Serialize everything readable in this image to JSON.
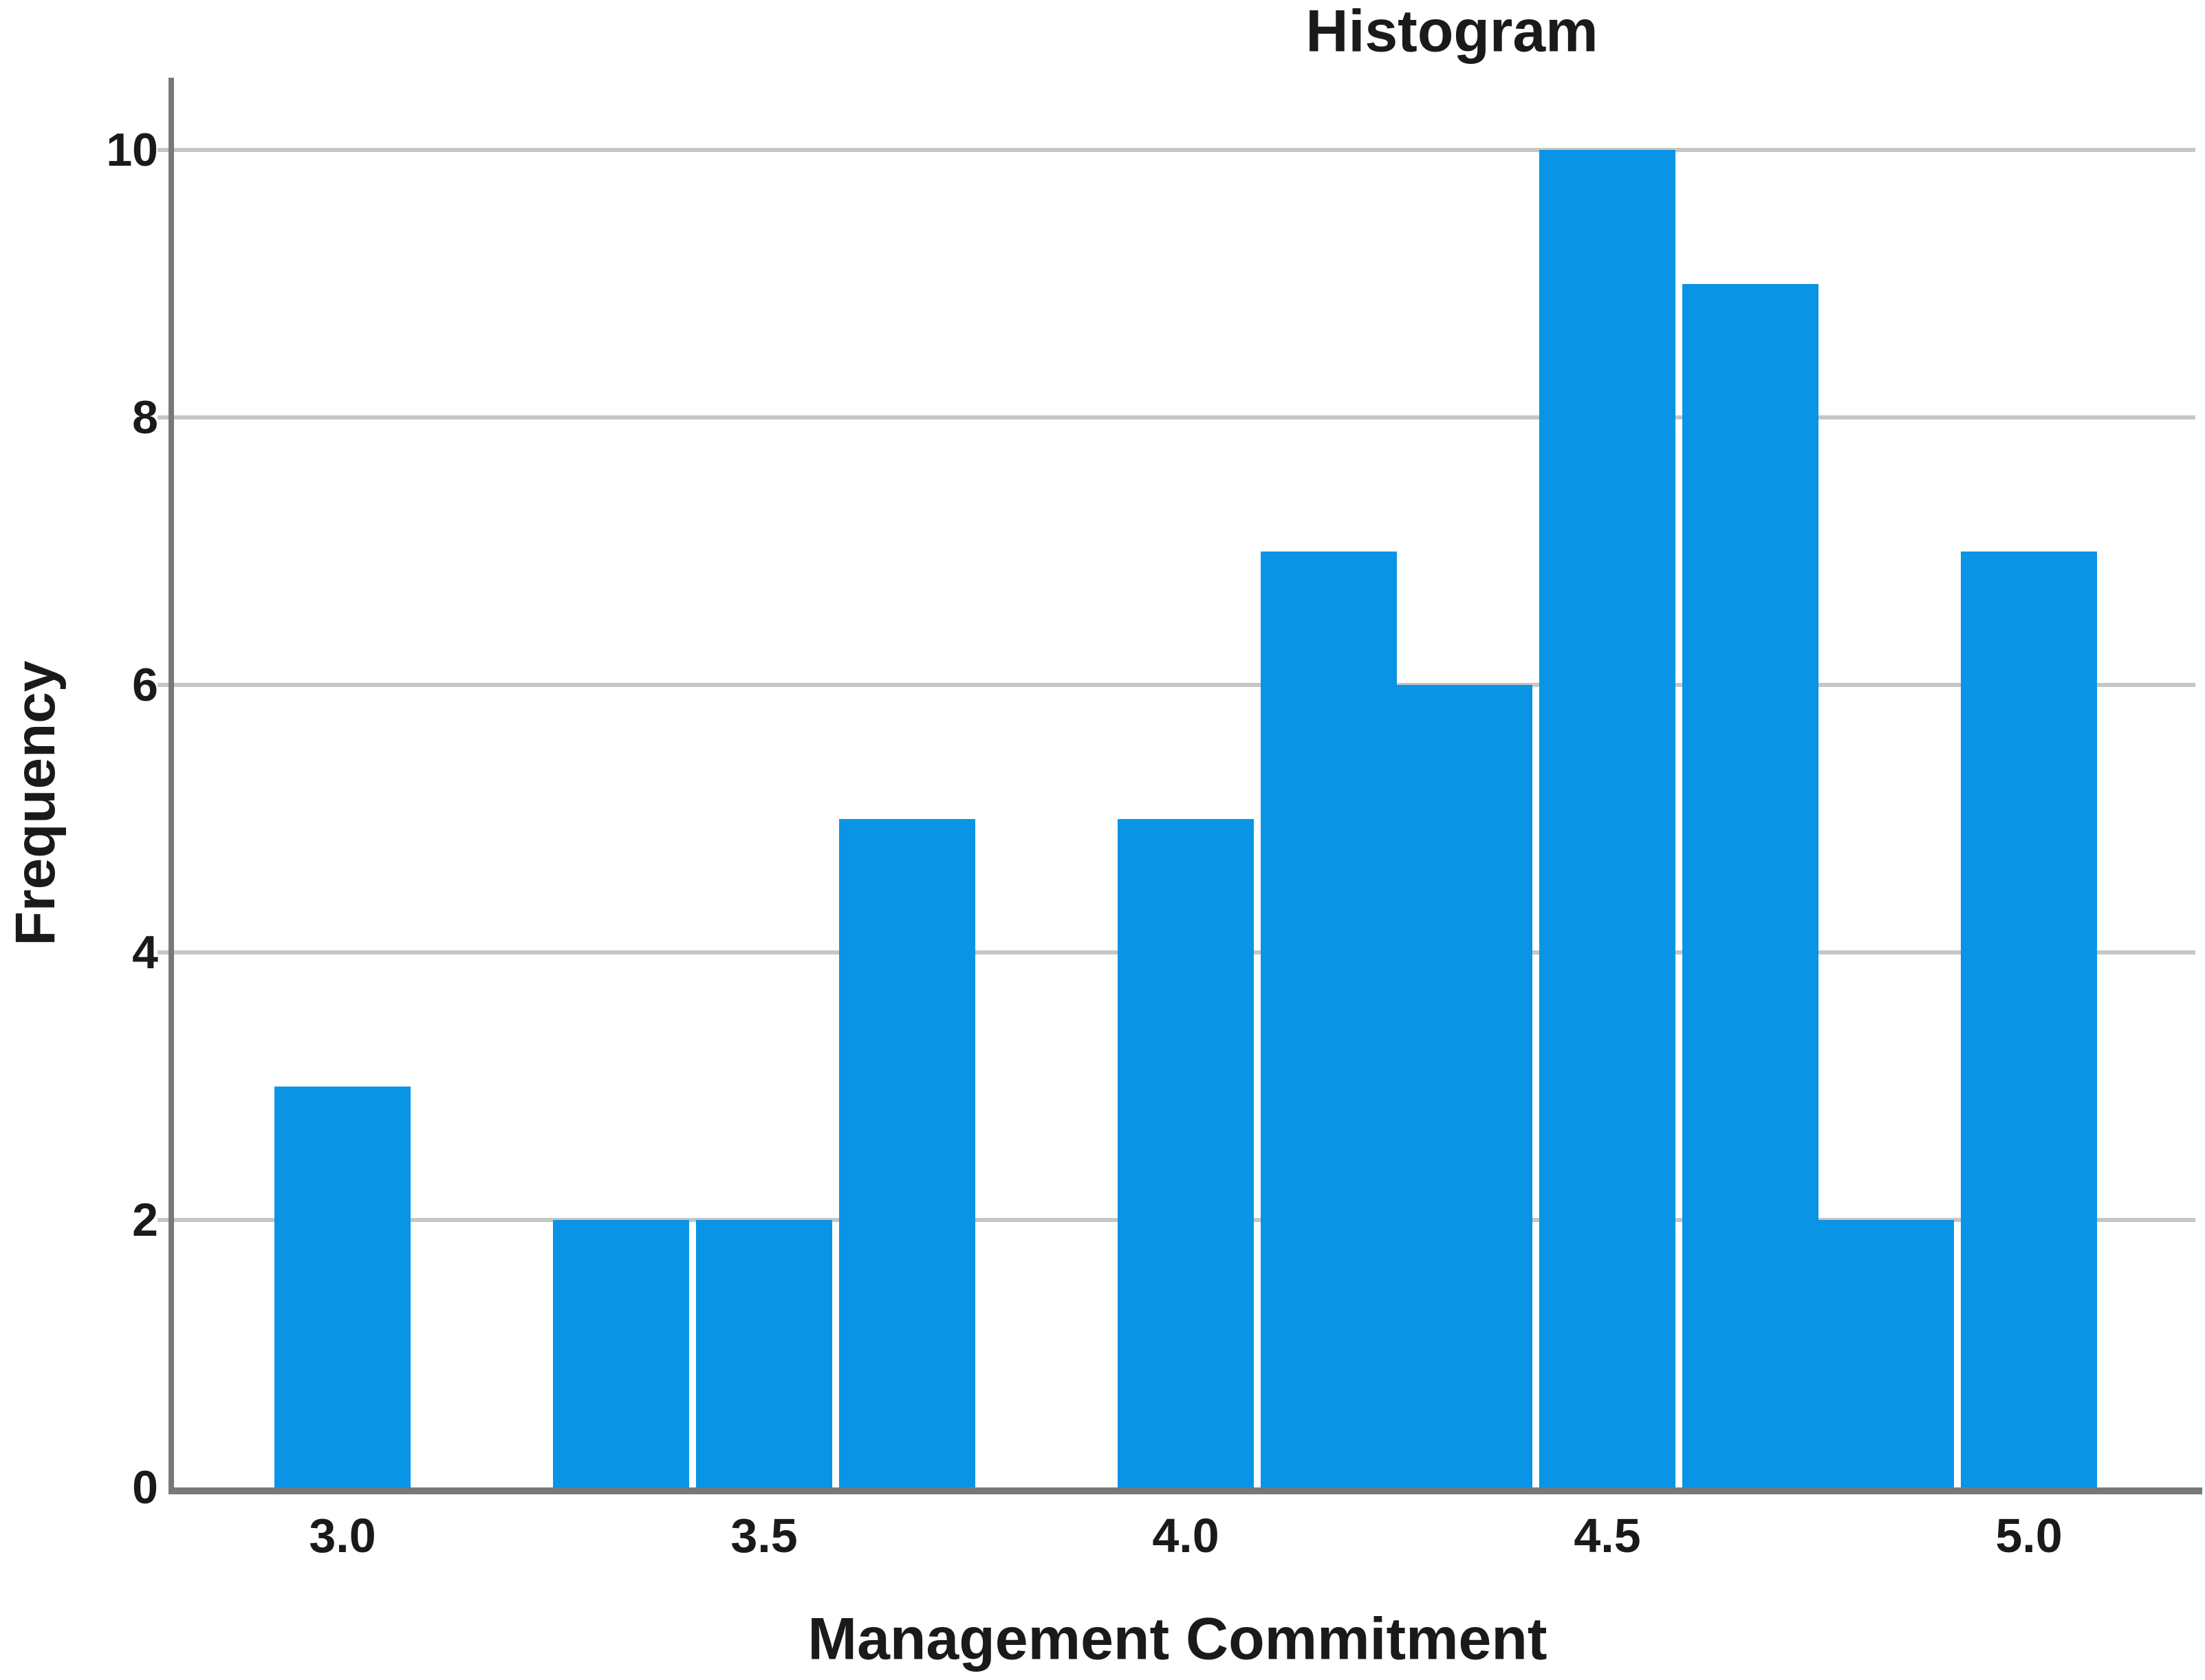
{
  "chart_data": {
    "type": "bar",
    "subtype": "histogram",
    "title": "Histogram",
    "xlabel": "Management Commitment",
    "ylabel": "Frequency",
    "bar_color": "#0a94e6",
    "grid": "horizontal",
    "legend": "none",
    "bin_width": 0.1667,
    "bins": [
      {
        "center": 3.0,
        "freq": 3
      },
      {
        "center": 3.33,
        "freq": 2
      },
      {
        "center": 3.5,
        "freq": 2
      },
      {
        "center": 3.67,
        "freq": 5
      },
      {
        "center": 4.0,
        "freq": 5
      },
      {
        "center": 4.17,
        "freq": 7
      },
      {
        "center": 4.33,
        "freq": 6
      },
      {
        "center": 4.5,
        "freq": 10
      },
      {
        "center": 4.67,
        "freq": 9
      },
      {
        "center": 4.83,
        "freq": 2
      },
      {
        "center": 5.0,
        "freq": 7
      }
    ],
    "x_ticks": [
      {
        "value": 3.0,
        "label": "3.0"
      },
      {
        "value": 3.5,
        "label": "3.5"
      },
      {
        "value": 4.0,
        "label": "4.0"
      },
      {
        "value": 4.5,
        "label": "4.5"
      },
      {
        "value": 5.0,
        "label": "5.0"
      }
    ],
    "y_ticks": [
      {
        "value": 0,
        "label": "0"
      },
      {
        "value": 2,
        "label": "2"
      },
      {
        "value": 4,
        "label": "4"
      },
      {
        "value": 6,
        "label": "6"
      },
      {
        "value": 8,
        "label": "8"
      },
      {
        "value": 10,
        "label": "10"
      }
    ],
    "xlim": [
      2.8,
      5.2
    ],
    "ylim": [
      0,
      10.5
    ]
  }
}
